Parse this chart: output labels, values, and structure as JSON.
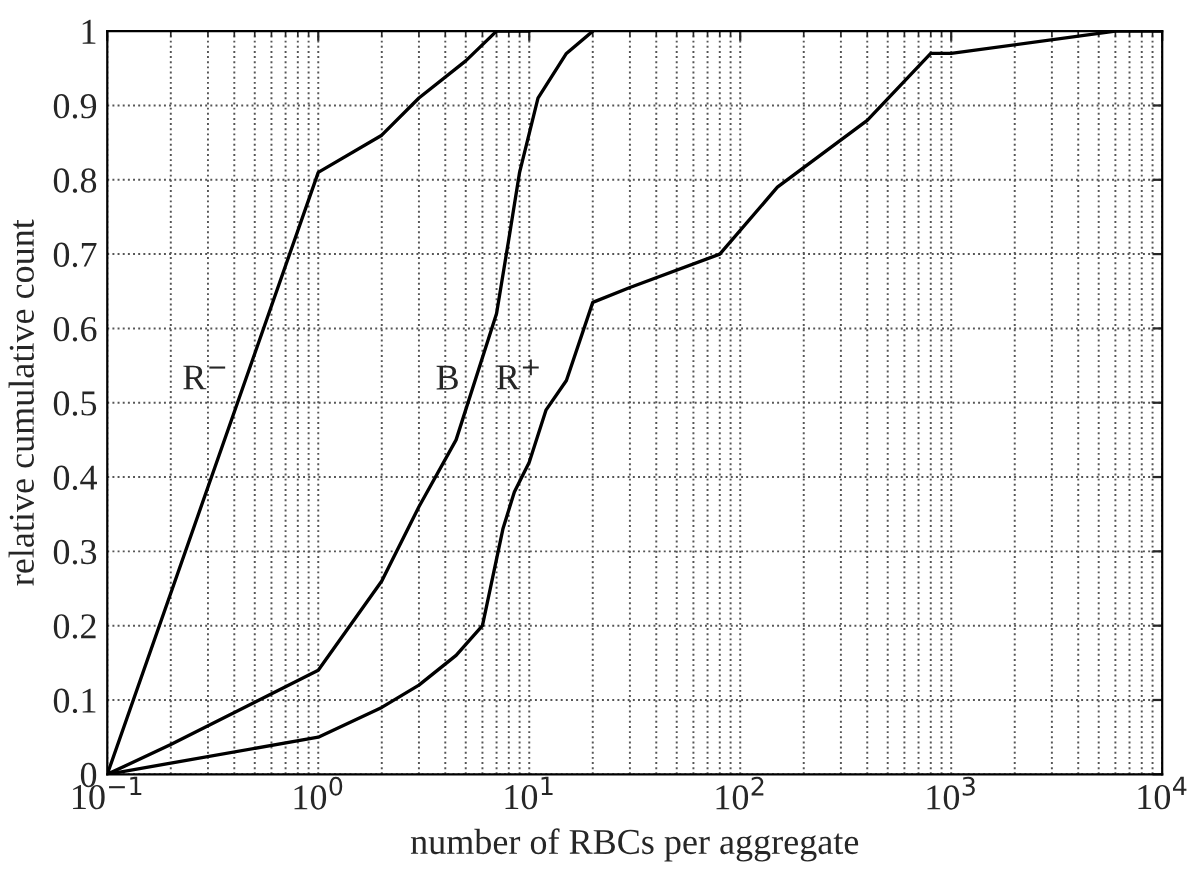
{
  "chart_data": {
    "type": "line",
    "xlabel": "number of RBCs per aggregate",
    "ylabel": "relative cumulative count",
    "log": "x",
    "grid": true,
    "legend": false,
    "marker": "none",
    "line_style": "solid",
    "xlim": [
      0.1,
      10000
    ],
    "ylim": [
      0,
      1
    ],
    "xticks": [
      {
        "value": 0.1,
        "label": "10$^{−1}$"
      },
      {
        "value": 1,
        "label": "10$^{0}$"
      },
      {
        "value": 10,
        "label": "10$^{1}$"
      },
      {
        "value": 100,
        "label": "10$^{2}$"
      },
      {
        "value": 1000,
        "label": "10$^{3}$"
      },
      {
        "value": 10000,
        "label": "10$^{4}$"
      }
    ],
    "yticks": [
      0,
      0.1,
      0.2,
      0.3,
      0.4,
      0.5,
      0.6,
      0.7,
      0.8,
      0.9,
      1
    ],
    "series": [
      {
        "name": "R$^{−}$",
        "color": "#000000",
        "x": [
          0.1,
          1,
          2,
          3,
          5,
          7,
          10
        ],
        "values": [
          0,
          0.81,
          0.86,
          0.91,
          0.96,
          1.0,
          1.0
        ]
      },
      {
        "name": "B",
        "color": "#000000",
        "x": [
          0.1,
          0.2,
          1,
          2,
          3,
          4.5,
          7,
          8,
          9,
          11,
          15,
          20
        ],
        "values": [
          0,
          0.04,
          0.14,
          0.26,
          0.36,
          0.45,
          0.62,
          0.72,
          0.81,
          0.91,
          0.97,
          1.0
        ]
      },
      {
        "name": "R$^{+}$",
        "color": "#000000",
        "x": [
          0.1,
          1,
          2,
          3,
          4.5,
          6,
          7.5,
          8.5,
          10,
          12,
          15,
          20,
          30,
          80,
          150,
          400,
          800,
          1000,
          6000,
          10000
        ],
        "values": [
          0,
          0.05,
          0.09,
          0.12,
          0.16,
          0.2,
          0.33,
          0.38,
          0.42,
          0.49,
          0.53,
          0.635,
          0.655,
          0.7,
          0.79,
          0.88,
          0.97,
          0.97,
          1.0,
          1.0
        ]
      }
    ]
  }
}
